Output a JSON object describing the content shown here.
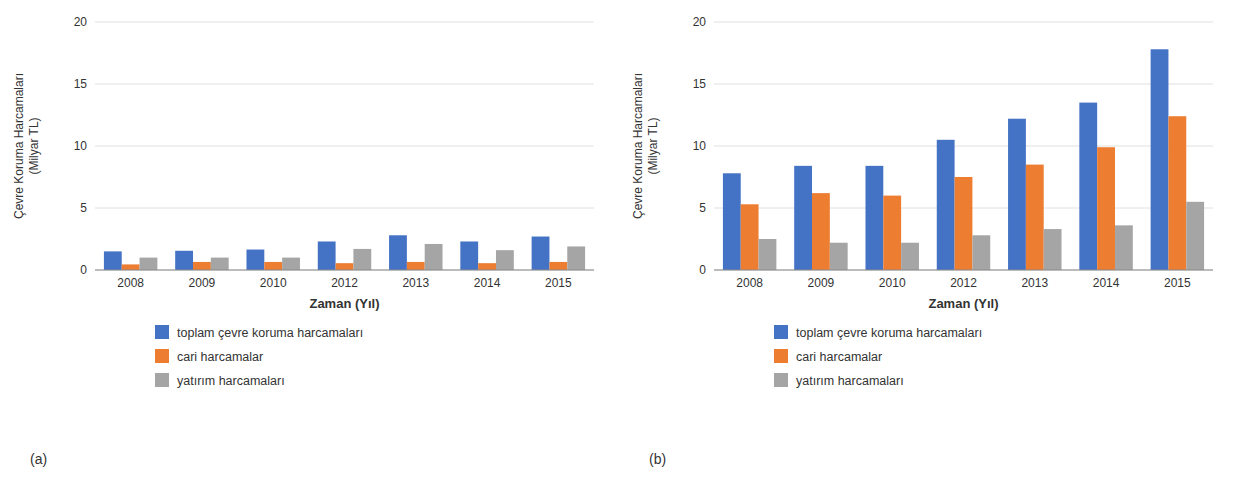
{
  "chart_data": [
    {
      "type": "bar",
      "title": "(a)",
      "categories": [
        "2008",
        "2009",
        "2010",
        "2012",
        "2013",
        "2014",
        "2015"
      ],
      "series": [
        {
          "name": "toplam çevre koruma harcamaları",
          "color": "#4472C4",
          "values": [
            1.5,
            1.55,
            1.65,
            2.3,
            2.8,
            2.3,
            2.7
          ]
        },
        {
          "name": "cari harcamalar",
          "color": "#ED7D31",
          "values": [
            0.45,
            0.65,
            0.65,
            0.55,
            0.65,
            0.55,
            0.65
          ]
        },
        {
          "name": "yatırım harcamaları",
          "color": "#A5A5A5",
          "values": [
            1.0,
            1.0,
            1.0,
            1.7,
            2.1,
            1.6,
            1.9
          ]
        }
      ],
      "xlabel": "Zaman (Yıl)",
      "ylabel": "Çevre Koruma Harcamaları\n(Milyar TL)",
      "ylim": [
        0,
        20
      ],
      "yticks": [
        0,
        5,
        10,
        15,
        20
      ],
      "grid": true,
      "legend": "bottom"
    },
    {
      "type": "bar",
      "title": "(b)",
      "categories": [
        "2008",
        "2009",
        "2010",
        "2012",
        "2013",
        "2014",
        "2015"
      ],
      "series": [
        {
          "name": "toplam çevre koruma harcamaları",
          "color": "#4472C4",
          "values": [
            7.8,
            8.4,
            8.4,
            10.5,
            12.2,
            13.5,
            17.8
          ]
        },
        {
          "name": "cari harcamalar",
          "color": "#ED7D31",
          "values": [
            5.3,
            6.2,
            6.0,
            7.5,
            8.5,
            9.9,
            12.4
          ]
        },
        {
          "name": "yatırım harcamaları",
          "color": "#A5A5A5",
          "values": [
            2.5,
            2.2,
            2.2,
            2.8,
            3.3,
            3.6,
            5.5
          ]
        }
      ],
      "xlabel": "Zaman (Yıl)",
      "ylabel": "Çevre Koruma Harcamaları\n(Milyar TL)",
      "ylim": [
        0,
        20
      ],
      "yticks": [
        0,
        5,
        10,
        15,
        20
      ],
      "grid": true,
      "legend": "bottom"
    }
  ]
}
